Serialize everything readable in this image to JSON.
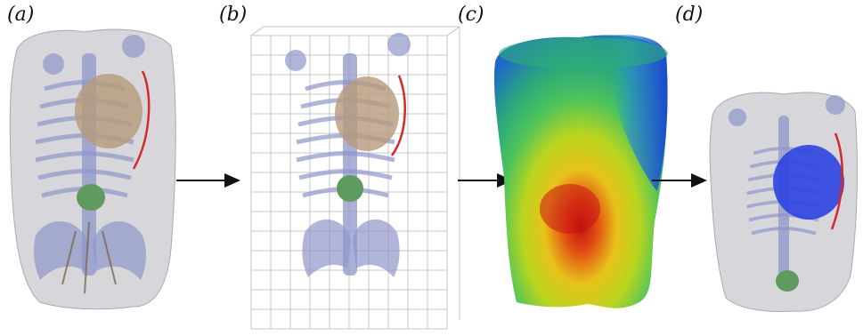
{
  "panels": [
    {
      "id": "a",
      "label": "(a)"
    },
    {
      "id": "b",
      "label": "(b)"
    },
    {
      "id": "c",
      "label": "(c)"
    },
    {
      "id": "d",
      "label": "(d)"
    }
  ],
  "colors": {
    "skin": "#c9c9cf",
    "bone": "#8f95c9",
    "heart": "#b79a7a",
    "organ_green": "#5f9a5f",
    "catheter": "#d42a2a",
    "grid_line": "#b9b9b9",
    "arrow": "#111111",
    "heat_red": "#d01818",
    "heat_yellow": "#e6e21a",
    "heat_green": "#3fc25a",
    "heat_blue": "#1c4fd6",
    "heart_blue": "#2c44e0"
  }
}
